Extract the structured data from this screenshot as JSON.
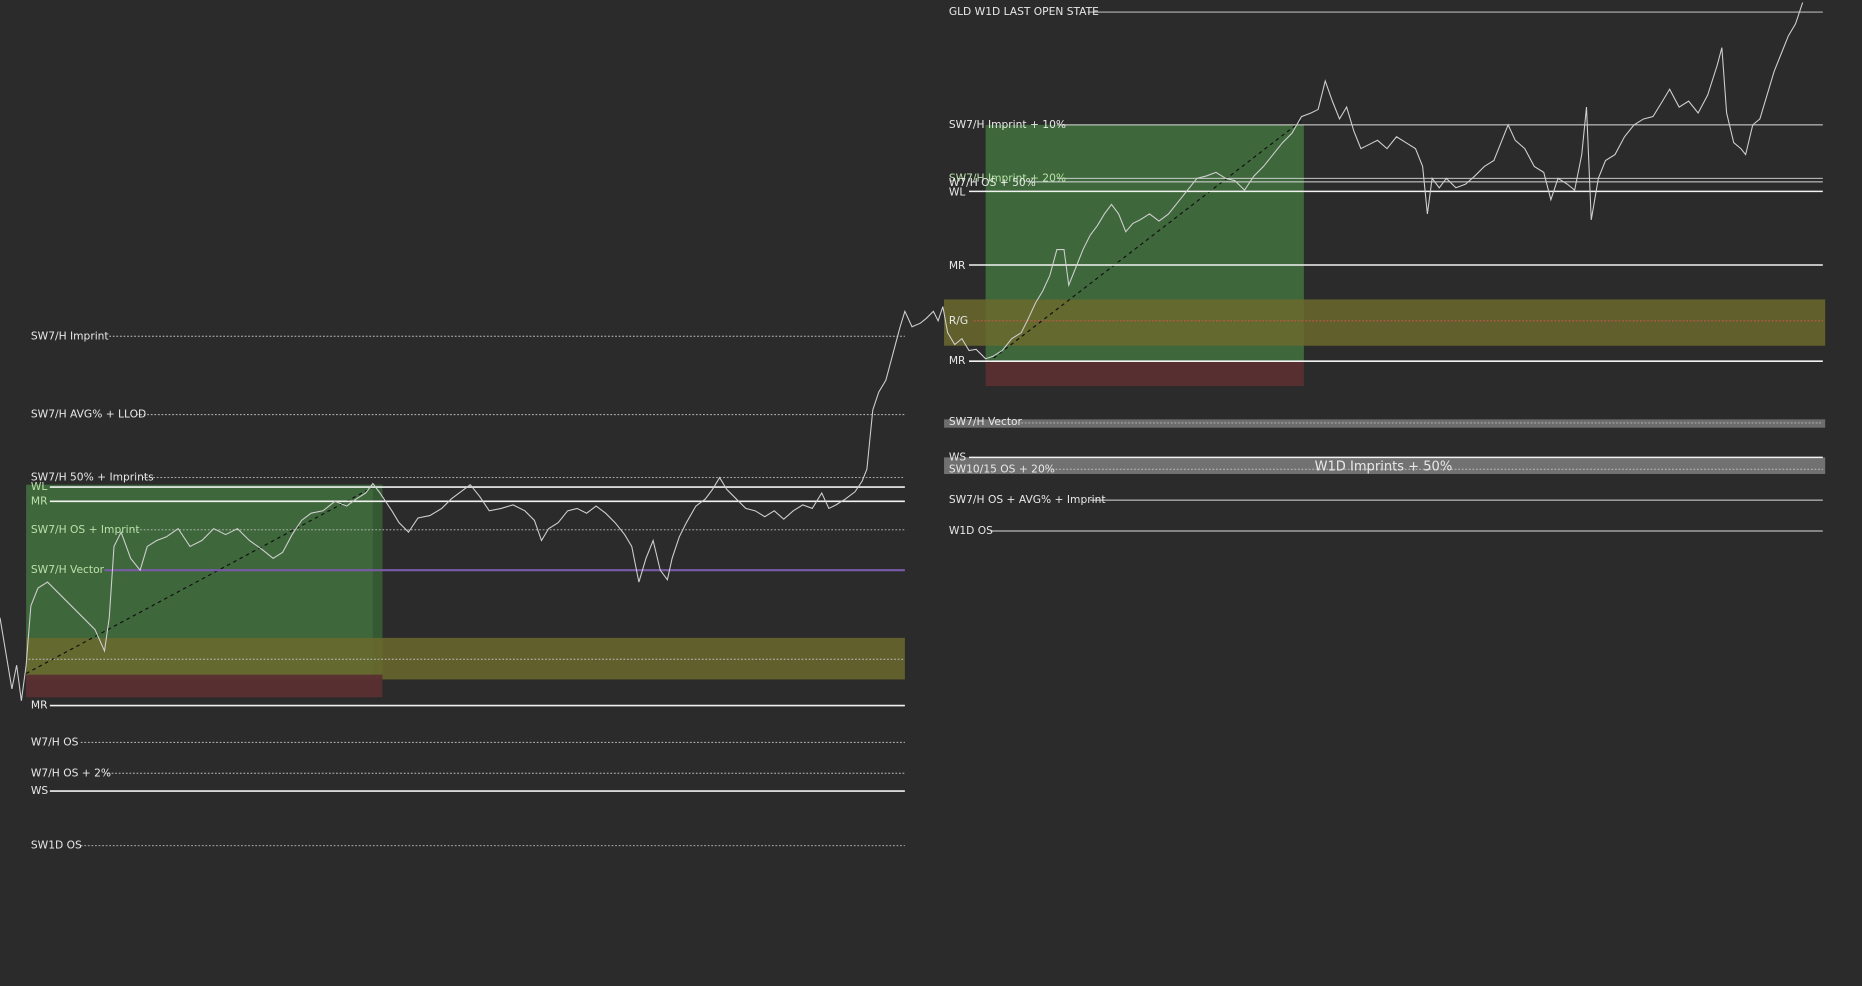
{
  "left_panel": {
    "levels": [
      "SW7/H Imprint",
      "SW7/H AVG% + LLOD",
      "SW7/H 50% + Imprints",
      "WL",
      "MR",
      "SW7/H OS + Imprint",
      "SW7/H Vector",
      "MR",
      "W7/H OS",
      "W7/H OS + 2%",
      "WS",
      "SW1D OS"
    ]
  },
  "right_panel": {
    "title": "GLD W1D LAST OPEN STATE",
    "levels": [
      "SW7/H Imprint + 10%",
      "SW7/H Imprint + 20%",
      "W7/H OS + 50%",
      "WL",
      "MR",
      "R/G",
      "MR",
      "SW7/H Vector",
      "WS",
      "SW10/15 OS + 20%",
      "SW7/H OS + AVG% + Imprint",
      "W1D OS"
    ],
    "band_label": "W1D Imprints + 50%"
  }
}
